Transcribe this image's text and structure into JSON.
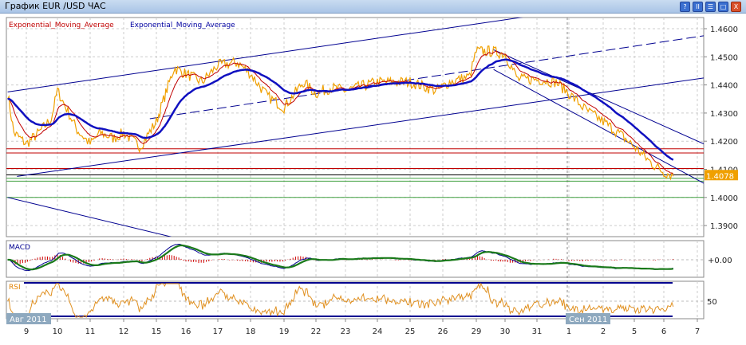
{
  "window": {
    "title": "График EUR /USD  ЧАС",
    "buttons": [
      "?",
      "II",
      "☰",
      "□",
      "X"
    ]
  },
  "legend": [
    {
      "label": "Exponential_Moving_Average",
      "color": "#c00000"
    },
    {
      "label": "Exponential_Moving_Average",
      "color": "#0000a0"
    }
  ],
  "price_axis": {
    "ticks": [
      "1.4600",
      "1.4500",
      "1.4400",
      "1.4300",
      "1.4200",
      "1.4100",
      "1.4000",
      "1.3900"
    ],
    "tick_values": [
      1.46,
      1.45,
      1.44,
      1.43,
      1.42,
      1.41,
      1.4,
      1.39
    ],
    "current": "1.4078",
    "current_value": 1.4078,
    "current_color": "#f0a000"
  },
  "time_axis": {
    "days": [
      "9",
      "10",
      "11",
      "12",
      "15",
      "16",
      "17",
      "18",
      "19",
      "22",
      "23",
      "24",
      "25",
      "26",
      "29",
      "30",
      "31",
      "1",
      "2",
      "5",
      "6",
      "7"
    ],
    "months": [
      {
        "label": "Авг 2011",
        "day_index": 0
      },
      {
        "label": "Сен 2011",
        "day_index": 17
      }
    ]
  },
  "chart_data": {
    "type": "line",
    "price": [
      [
        -0.6,
        1.437
      ],
      [
        -0.4,
        1.423
      ],
      [
        0,
        1.419
      ],
      [
        0.4,
        1.423
      ],
      [
        0.8,
        1.428
      ],
      [
        1,
        1.438
      ],
      [
        1.3,
        1.431
      ],
      [
        1.6,
        1.424
      ],
      [
        2,
        1.419
      ],
      [
        2.3,
        1.423
      ],
      [
        2.7,
        1.421
      ],
      [
        3,
        1.423
      ],
      [
        3.5,
        1.418
      ],
      [
        4,
        1.427
      ],
      [
        4.6,
        1.446
      ],
      [
        5,
        1.444
      ],
      [
        5.5,
        1.441
      ],
      [
        6,
        1.447
      ],
      [
        6.6,
        1.448
      ],
      [
        7,
        1.444
      ],
      [
        7.5,
        1.436
      ],
      [
        8,
        1.432
      ],
      [
        8.6,
        1.441
      ],
      [
        9,
        1.437
      ],
      [
        9.5,
        1.439
      ],
      [
        10,
        1.438
      ],
      [
        11,
        1.441
      ],
      [
        12,
        1.441
      ],
      [
        12.8,
        1.438
      ],
      [
        13.2,
        1.441
      ],
      [
        13.8,
        1.443
      ],
      [
        14,
        1.452
      ],
      [
        14.5,
        1.452
      ],
      [
        15,
        1.451
      ],
      [
        15.4,
        1.442
      ],
      [
        16,
        1.442
      ],
      [
        16.6,
        1.441
      ],
      [
        17,
        1.437
      ],
      [
        17.5,
        1.431
      ],
      [
        18,
        1.427
      ],
      [
        18.6,
        1.422
      ],
      [
        19,
        1.418
      ],
      [
        19.6,
        1.412
      ],
      [
        20,
        1.409
      ],
      [
        20.3,
        1.4078
      ]
    ],
    "ema_fast_color": "#c00000",
    "ema_slow_color": "#1010c0",
    "price_color": "#f0a000",
    "horizontal_lines": [
      {
        "price": 1.4173,
        "color": "#c00000"
      },
      {
        "price": 1.4158,
        "color": "#c00000"
      },
      {
        "price": 1.4103,
        "color": "#c00000"
      },
      {
        "price": 1.408,
        "color": "#000000"
      },
      {
        "price": 1.4068,
        "color": "#40a040"
      },
      {
        "price": 1.4058,
        "color": "#40a040"
      },
      {
        "price": 1.4,
        "color": "#40a040"
      }
    ],
    "trend_lines": [
      {
        "from": [
          -0.6,
          1.4375
        ],
        "to": [
          15.8,
          1.4645
        ],
        "dash": false
      },
      {
        "from": [
          3.8,
          1.428
        ],
        "to": [
          21.2,
          1.4575
        ],
        "dash": true
      },
      {
        "from": [
          -0.3,
          1.4075
        ],
        "to": [
          21.2,
          1.4425
        ],
        "dash": false
      },
      {
        "from": [
          14.6,
          1.4525
        ],
        "to": [
          21.2,
          1.419
        ],
        "dash": false
      },
      {
        "from": [
          14.6,
          1.4455
        ],
        "to": [
          21.2,
          1.405
        ],
        "dash": false
      },
      {
        "from": [
          -0.6,
          1.4
        ],
        "to": [
          4.5,
          1.386
        ],
        "dash": false
      }
    ]
  },
  "macd": {
    "label": "MACD",
    "zero_label": "+0.00"
  },
  "rsi": {
    "label": "RSI",
    "level_label": "50"
  }
}
